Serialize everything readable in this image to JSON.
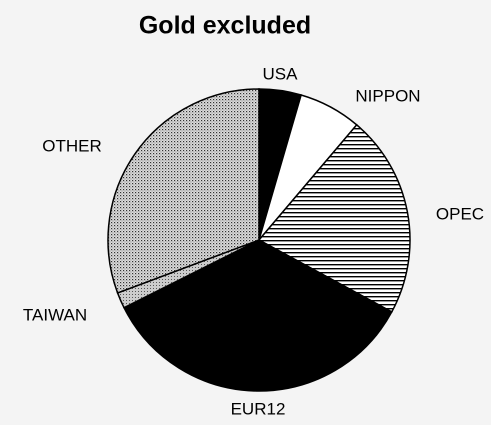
{
  "chart_data": {
    "type": "pie",
    "title": "Gold excluded",
    "categories": [
      "USA",
      "NIPPON",
      "OPEC",
      "EUR12",
      "TAIWAN",
      "OTHER"
    ],
    "values": [
      4.5,
      6.7,
      21.7,
      34.7,
      1.7,
      30.7
    ],
    "patterns": [
      "solid-black",
      "solid-white",
      "horizontal-lines",
      "solid-black",
      "fine-dots",
      "dots"
    ]
  }
}
